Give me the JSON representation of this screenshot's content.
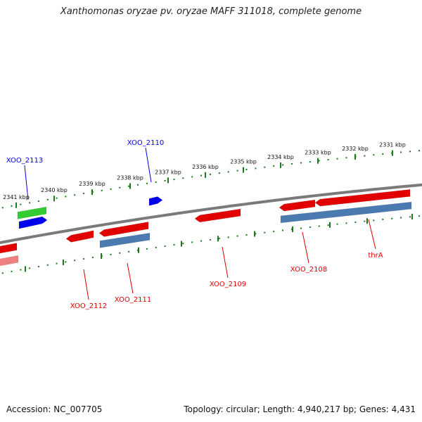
{
  "title": "Xanthomonas oryzae pv. oryzae MAFF 311018, complete genome",
  "footer": {
    "accession": "Accession: NC_007705",
    "summary": "Topology: circular; Length: 4,940,217 bp; Genes: 4,431"
  },
  "colors": {
    "backbone": "#7a7a7a",
    "tick": "#1a7a1a",
    "forward_gene": "#0000ee",
    "reverse_gene": "#e00000",
    "rna_green": "#33cc33",
    "cds_blue": "#4a7ab0",
    "pink": "#f08080"
  },
  "ticks": [
    {
      "label": "2331 kbp"
    },
    {
      "label": "2332 kbp"
    },
    {
      "label": "2333 kbp"
    },
    {
      "label": "2334 kbp"
    },
    {
      "label": "2335 kbp"
    },
    {
      "label": "2336 kbp"
    },
    {
      "label": "2337 kbp"
    },
    {
      "label": "2338 kbp"
    },
    {
      "label": "2339 kbp"
    },
    {
      "label": "2340 kbp"
    },
    {
      "label": "2341 kbp"
    }
  ],
  "labels": [
    {
      "text": "XOO_2113",
      "color": "blue"
    },
    {
      "text": "XOO_2110",
      "color": "blue"
    },
    {
      "text": "XOO_2112",
      "color": "red"
    },
    {
      "text": "XOO_2111",
      "color": "red"
    },
    {
      "text": "XOO_2109",
      "color": "red"
    },
    {
      "text": "XOO_2108",
      "color": "red"
    },
    {
      "text": "thrA",
      "color": "red"
    }
  ]
}
